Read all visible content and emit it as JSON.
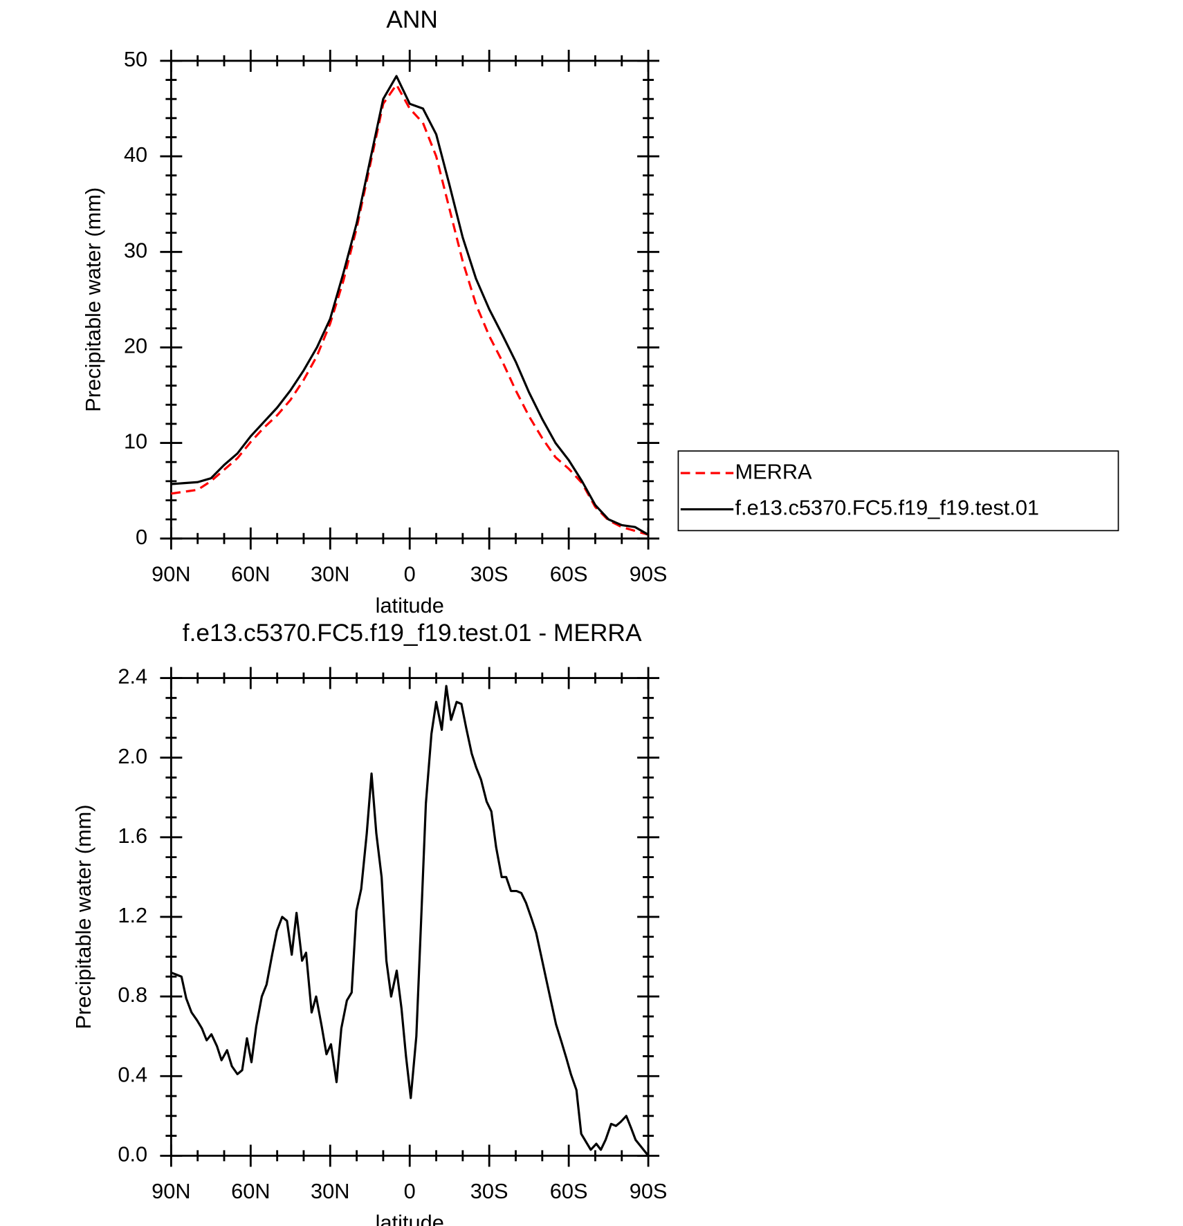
{
  "chart_data": [
    {
      "type": "line",
      "title": "ANN",
      "xlabel": "latitude",
      "ylabel": "Precipitable water (mm)",
      "x": [
        90,
        85,
        80,
        75,
        70,
        65,
        60,
        55,
        50,
        45,
        40,
        35,
        30,
        25,
        20,
        15,
        10,
        5,
        0,
        -5,
        -10,
        -15,
        -20,
        -25,
        -30,
        -35,
        -40,
        -45,
        -50,
        -55,
        -60,
        -65,
        -70,
        -75,
        -80,
        -85,
        -90
      ],
      "series": [
        {
          "name": "MERRA",
          "color": "#ff0000",
          "linestyle": "dashed",
          "values": [
            4.7,
            4.9,
            5.1,
            6.0,
            7.2,
            8.4,
            10.1,
            11.6,
            12.9,
            14.5,
            16.6,
            19.1,
            22.5,
            27.0,
            32.5,
            39.0,
            45.5,
            47.5,
            45.0,
            43.5,
            40.0,
            34.5,
            29.0,
            24.5,
            21.2,
            18.5,
            15.5,
            12.8,
            10.5,
            8.5,
            7.3,
            5.8,
            3.3,
            1.9,
            1.2,
            0.8,
            0.4
          ]
        },
        {
          "name": "f.e13.c5370.FC5.f19_f19.test.01",
          "color": "#000000",
          "linestyle": "solid",
          "values": [
            5.7,
            5.8,
            5.9,
            6.3,
            7.7,
            8.9,
            10.7,
            12.2,
            13.7,
            15.5,
            17.6,
            20.0,
            23.0,
            27.8,
            33.0,
            39.5,
            46.0,
            48.4,
            45.5,
            45.0,
            42.3,
            37.0,
            31.5,
            27.2,
            24.0,
            21.3,
            18.5,
            15.3,
            12.5,
            10.0,
            8.2,
            6.0,
            3.5,
            2.0,
            1.4,
            1.2,
            0.4
          ]
        }
      ],
      "xlim": [
        90,
        -90
      ],
      "xticks": [
        {
          "value": 90,
          "label": "90N"
        },
        {
          "value": 60,
          "label": "60N"
        },
        {
          "value": 30,
          "label": "30N"
        },
        0,
        {
          "value": -30,
          "label": "30S"
        },
        {
          "value": -60,
          "label": "60S"
        },
        {
          "value": -90,
          "label": "90S"
        }
      ],
      "ylim": [
        0,
        50
      ],
      "yticks": [
        0,
        10,
        20,
        30,
        40,
        50
      ],
      "legend": "right"
    },
    {
      "type": "line",
      "title": "f.e13.c5370.FC5.f19_f19.test.01 - MERRA",
      "xlabel": "latitude",
      "ylabel": "Precipitable water (mm)",
      "x": [
        90,
        86.1,
        84.3,
        82.3,
        80.2,
        78.4,
        76.6,
        74.8,
        72.7,
        71.0,
        68.9,
        67.1,
        65.0,
        63.2,
        61.4,
        59.7,
        57.9,
        55.8,
        54.0,
        51.9,
        50.1,
        48.1,
        46.3,
        44.5,
        42.7,
        40.6,
        39.1,
        37.0,
        35.3,
        33.2,
        31.4,
        29.7,
        27.6,
        25.8,
        23.7,
        21.9,
        20.1,
        18.3,
        16.2,
        14.4,
        12.6,
        10.6,
        8.8,
        7.0,
        4.9,
        3.1,
        1.4,
        -0.4,
        -2.5,
        -4.3,
        -6.1,
        -8.2,
        -10.0,
        -12.1,
        -13.8,
        -15.6,
        -17.7,
        -19.5,
        -21.3,
        -23.4,
        -25.1,
        -26.9,
        -29.0,
        -30.8,
        -32.6,
        -34.7,
        -36.4,
        -38.2,
        -40.3,
        -42.1,
        -43.9,
        -46.0,
        -47.7,
        -49.5,
        -51.6,
        -53.4,
        -55.2,
        -57.3,
        -59.1,
        -60.8,
        -62.9,
        -64.7,
        -66.5,
        -68.3,
        -70.4,
        -72.1,
        -73.9,
        -76.0,
        -77.8,
        -79.6,
        -81.7,
        -83.5,
        -85.2,
        -87.0,
        -90
      ],
      "values": [
        0.92,
        0.9,
        0.79,
        0.72,
        0.68,
        0.64,
        0.58,
        0.61,
        0.55,
        0.48,
        0.53,
        0.45,
        0.41,
        0.43,
        0.59,
        0.47,
        0.65,
        0.8,
        0.86,
        1.01,
        1.13,
        1.2,
        1.18,
        1.01,
        1.22,
        0.98,
        1.02,
        0.72,
        0.8,
        0.65,
        0.51,
        0.56,
        0.37,
        0.64,
        0.78,
        0.82,
        1.23,
        1.34,
        1.62,
        1.92,
        1.62,
        1.4,
        0.98,
        0.8,
        0.93,
        0.74,
        0.5,
        0.29,
        0.6,
        1.18,
        1.77,
        2.12,
        2.28,
        2.14,
        2.36,
        2.19,
        2.28,
        2.27,
        2.15,
        2.02,
        1.95,
        1.89,
        1.78,
        1.73,
        1.55,
        1.4,
        1.4,
        1.33,
        1.33,
        1.32,
        1.27,
        1.19,
        1.12,
        1.01,
        0.88,
        0.77,
        0.66,
        0.57,
        0.49,
        0.41,
        0.33,
        0.11,
        0.07,
        0.03,
        0.06,
        0.03,
        0.08,
        0.16,
        0.15,
        0.17,
        0.2,
        0.14,
        0.08,
        0.05,
        0.0
      ],
      "color": "#000000",
      "xlim": [
        90,
        -90
      ],
      "xticks": [
        {
          "value": 90,
          "label": "90N"
        },
        {
          "value": 60,
          "label": "60N"
        },
        {
          "value": 30,
          "label": "30N"
        },
        0,
        {
          "value": -30,
          "label": "30S"
        },
        {
          "value": -60,
          "label": "60S"
        },
        {
          "value": -90,
          "label": "90S"
        }
      ],
      "ylim": [
        0,
        2.4
      ],
      "yticks": [
        {
          "value": 0,
          "label": "0.0"
        },
        0.4,
        0.8,
        1.2,
        1.6,
        {
          "value": 2,
          "label": "2.0"
        },
        2.4
      ]
    }
  ]
}
